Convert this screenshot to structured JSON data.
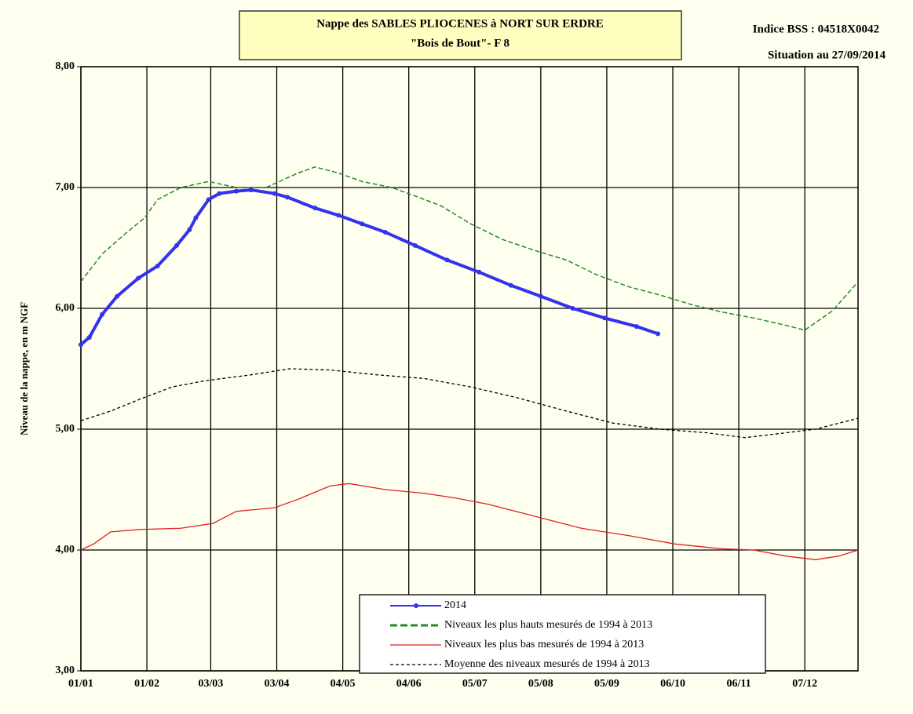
{
  "chart_data": {
    "type": "line",
    "title": "Nappe des SABLES PLIOCENES à NORT SUR ERDRE",
    "subtitle": "\"Bois de Bout\"- F 8",
    "annotations": [
      "Indice BSS : 04518X0042",
      "Situation au 27/09/2014"
    ],
    "y_label": "Niveau de la nappe, en m NGF",
    "xlim": [
      0,
      365
    ],
    "xticks": [
      {
        "value": 0,
        "label": "01/01"
      },
      {
        "value": 31,
        "label": "01/02"
      },
      {
        "value": 61,
        "label": "03/03"
      },
      {
        "value": 92,
        "label": "03/04"
      },
      {
        "value": 123,
        "label": "04/05"
      },
      {
        "value": 154,
        "label": "04/06"
      },
      {
        "value": 185,
        "label": "05/07"
      },
      {
        "value": 216,
        "label": "05/08"
      },
      {
        "value": 247,
        "label": "05/09"
      },
      {
        "value": 278,
        "label": "06/10"
      },
      {
        "value": 309,
        "label": "06/11"
      },
      {
        "value": 340,
        "label": "07/12"
      }
    ],
    "ylim": [
      3,
      8
    ],
    "yticks": [
      {
        "value": 3,
        "label": "3,00"
      },
      {
        "value": 4,
        "label": "4,00"
      },
      {
        "value": 5,
        "label": "5,00"
      },
      {
        "value": 6,
        "label": "6,00"
      },
      {
        "value": 7,
        "label": "7,00"
      },
      {
        "value": 8,
        "label": "8,00"
      }
    ],
    "grid": true,
    "series": [
      {
        "name": "2014",
        "color": "#3333ee",
        "dashed": false,
        "markers": true,
        "x": [
          0,
          4,
          10,
          17,
          27,
          36,
          45,
          51,
          54,
          60,
          65,
          73,
          80,
          91,
          97,
          110,
          121,
          132,
          143,
          157,
          172,
          187,
          202,
          216,
          231,
          246,
          261,
          271
        ],
        "values": [
          5.7,
          5.76,
          5.95,
          6.1,
          6.25,
          6.35,
          6.52,
          6.65,
          6.75,
          6.9,
          6.95,
          6.97,
          6.98,
          6.95,
          6.92,
          6.83,
          6.77,
          6.7,
          6.63,
          6.52,
          6.4,
          6.3,
          6.19,
          6.1,
          6.0,
          5.92,
          5.85,
          5.79
        ]
      },
      {
        "name": "Niveaux les plus hauts mesurés de 1994 à 2013",
        "color": "#228b22",
        "dashed": true,
        "markers": false,
        "x": [
          0,
          10,
          21,
          30,
          36,
          47,
          60,
          73,
          87,
          102,
          110,
          121,
          132,
          146,
          157,
          169,
          183,
          198,
          213,
          228,
          242,
          257,
          272,
          287,
          301,
          316,
          331,
          340,
          353,
          365
        ],
        "values": [
          6.22,
          6.45,
          6.62,
          6.75,
          6.9,
          7.0,
          7.05,
          7.0,
          7.0,
          7.12,
          7.17,
          7.12,
          7.05,
          7.0,
          6.93,
          6.85,
          6.7,
          6.57,
          6.48,
          6.4,
          6.28,
          6.18,
          6.11,
          6.03,
          5.97,
          5.92,
          5.86,
          5.82,
          5.98,
          6.22
        ]
      },
      {
        "name": "Niveaux les plus bas mesurés de 1994 à 2013",
        "color": "#e02020",
        "dashed": false,
        "markers": false,
        "x": [
          0,
          6,
          14,
          28,
          47,
          62,
          73,
          91,
          102,
          117,
          126,
          143,
          161,
          176,
          191,
          213,
          235,
          257,
          279,
          301,
          316,
          331,
          345,
          356,
          365
        ],
        "values": [
          4.0,
          4.05,
          4.15,
          4.17,
          4.18,
          4.22,
          4.32,
          4.35,
          4.42,
          4.53,
          4.55,
          4.5,
          4.47,
          4.43,
          4.38,
          4.28,
          4.18,
          4.12,
          4.05,
          4.01,
          4.0,
          3.95,
          3.92,
          3.95,
          4.0
        ]
      },
      {
        "name": "Moyenne des niveaux mesurés de 1994 à 2013",
        "color": "#000000",
        "dashed": true,
        "markers": false,
        "x": [
          0,
          14,
          28,
          43,
          58,
          80,
          98,
          117,
          139,
          161,
          183,
          205,
          228,
          250,
          272,
          294,
          312,
          331,
          345,
          365
        ],
        "values": [
          5.07,
          5.15,
          5.25,
          5.35,
          5.4,
          5.45,
          5.5,
          5.49,
          5.45,
          5.42,
          5.35,
          5.26,
          5.15,
          5.05,
          5.0,
          4.97,
          4.93,
          4.97,
          5.0,
          5.09
        ]
      }
    ]
  }
}
